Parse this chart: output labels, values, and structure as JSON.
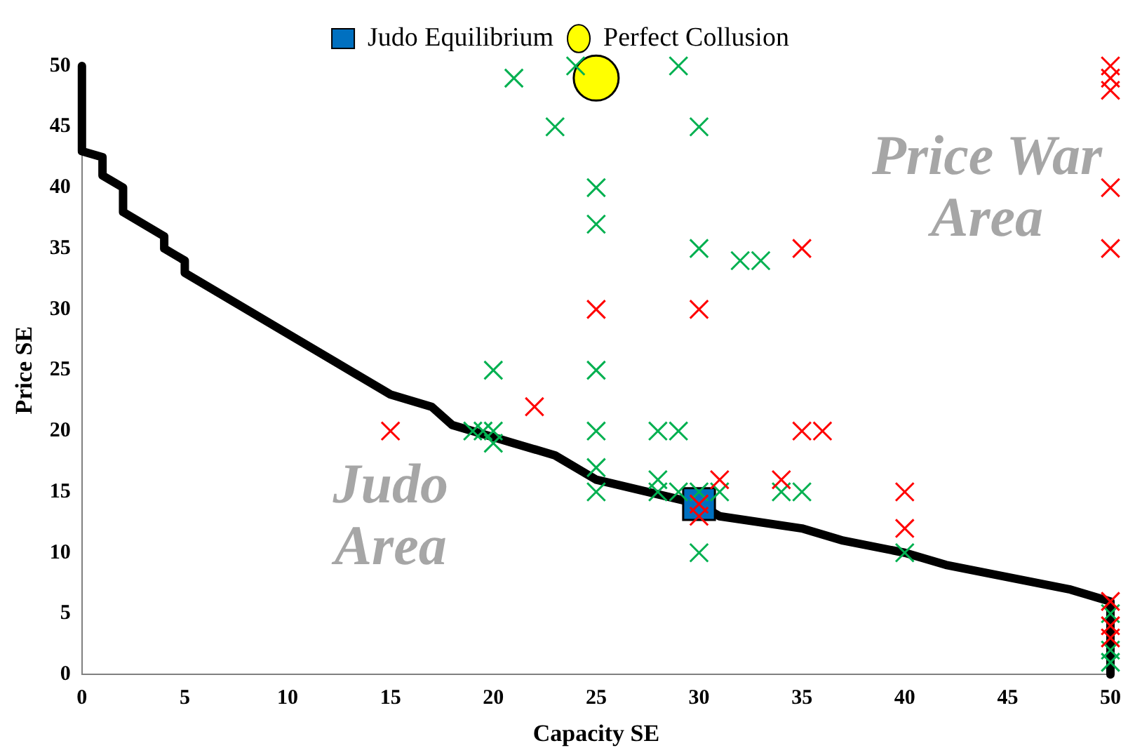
{
  "chart_data": {
    "type": "scatter",
    "xlabel": "Capacity SE",
    "ylabel": "Price SE",
    "xlim": [
      0,
      50
    ],
    "ylim": [
      0,
      50
    ],
    "xticks": [
      0,
      5,
      10,
      15,
      20,
      25,
      30,
      35,
      40,
      45,
      50
    ],
    "yticks": [
      0,
      5,
      10,
      15,
      20,
      25,
      30,
      35,
      40,
      45,
      50
    ],
    "grid": false,
    "legend": "top",
    "annotations": [
      "Judo Area",
      "Price War Area"
    ],
    "series": [
      {
        "type": "line",
        "color": "#000000",
        "marker": "none",
        "line_style": "solid",
        "x": [
          0,
          0,
          1,
          1,
          2,
          2,
          4,
          4,
          5,
          5,
          10,
          15,
          17,
          18,
          20,
          21,
          23,
          25,
          30,
          31,
          35,
          37,
          40,
          42,
          48,
          50,
          50
        ],
        "values": [
          50,
          43,
          42.5,
          41,
          40,
          38,
          36,
          35,
          34,
          33,
          28,
          23,
          22,
          20.5,
          19.5,
          19,
          18,
          16,
          14,
          13,
          12,
          11,
          10,
          9,
          7,
          6,
          0
        ]
      },
      {
        "color": "#00b050",
        "marker": "cross",
        "x": [
          21,
          24,
          23,
          29,
          30,
          25,
          25,
          25,
          25,
          25,
          25,
          30,
          32,
          33,
          20,
          19,
          20,
          20,
          19.5,
          28,
          29,
          28,
          28,
          29,
          30,
          31,
          30,
          34,
          35,
          40,
          50,
          50,
          50
        ],
        "values": [
          49,
          50,
          45,
          50,
          45,
          40,
          37,
          25,
          20,
          17,
          15,
          35,
          34,
          34,
          25,
          20,
          20,
          19,
          20,
          20,
          20,
          16,
          15,
          15,
          15,
          15,
          10,
          15,
          15,
          10,
          5,
          2,
          1
        ]
      },
      {
        "color": "#ff0000",
        "marker": "cross",
        "x": [
          15,
          22,
          25,
          30,
          35,
          35,
          36,
          31,
          34,
          30,
          30,
          40,
          40,
          50,
          50,
          50,
          50,
          50,
          50,
          50,
          50
        ],
        "values": [
          20,
          22,
          30,
          30,
          35,
          20,
          20,
          16,
          16,
          13,
          14,
          15,
          12,
          50,
          49,
          48,
          40,
          35,
          6,
          4,
          3
        ]
      },
      {
        "name": "Judo Equilibrium",
        "color": "#0070c0",
        "marker": "square",
        "x": [
          30
        ],
        "values": [
          14
        ]
      },
      {
        "name": "Perfect Collusion",
        "color": "#ffff00",
        "marker": "circle",
        "x": [
          25
        ],
        "values": [
          49
        ]
      }
    ]
  }
}
